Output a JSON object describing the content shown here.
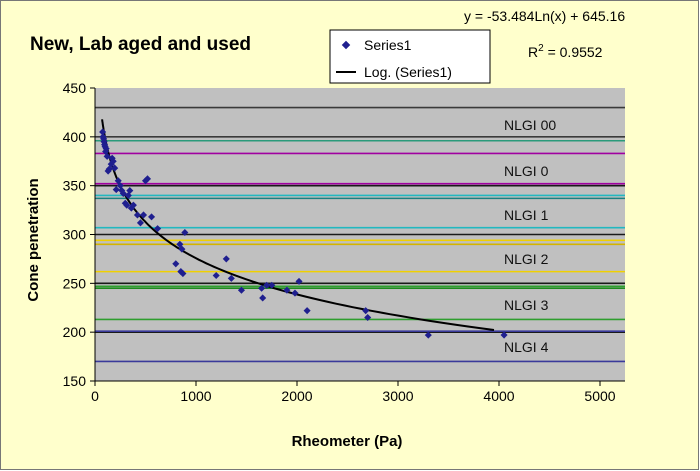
{
  "chart_data": {
    "type": "scatter",
    "title": "New, Lab aged and used",
    "xlabel": "Rheometer (Pa)",
    "ylabel": "Cone penetration",
    "xlim": [
      0,
      5000
    ],
    "ylim": [
      150,
      450
    ],
    "xticks": [
      0,
      1000,
      2000,
      3000,
      4000,
      5000
    ],
    "yticks": [
      150,
      200,
      250,
      300,
      350,
      400,
      450
    ],
    "plot_background": "#c0c0c0",
    "grid": false,
    "legend_position": "top-center",
    "legend": [
      "Series1",
      "Log. (Series1)"
    ],
    "trend_equation": "y = -53.484Ln(x) + 645.16",
    "r2_prefix": "R",
    "r2_exp": "2",
    "r2_value": " = 0.9552",
    "trendline": {
      "a": -53.484,
      "b": 645.16,
      "x_range": [
        70,
        3950
      ]
    },
    "series": [
      {
        "name": "Series1",
        "color": "#1f1f8f",
        "points": [
          [
            75,
            405
          ],
          [
            80,
            400
          ],
          [
            85,
            398
          ],
          [
            90,
            395
          ],
          [
            95,
            392
          ],
          [
            100,
            390
          ],
          [
            105,
            385
          ],
          [
            110,
            388
          ],
          [
            120,
            380
          ],
          [
            130,
            365
          ],
          [
            140,
            367
          ],
          [
            160,
            372
          ],
          [
            170,
            378
          ],
          [
            180,
            375
          ],
          [
            195,
            368
          ],
          [
            210,
            346
          ],
          [
            230,
            355
          ],
          [
            250,
            350
          ],
          [
            265,
            345
          ],
          [
            280,
            342
          ],
          [
            300,
            332
          ],
          [
            315,
            330
          ],
          [
            330,
            340
          ],
          [
            345,
            345
          ],
          [
            360,
            327
          ],
          [
            380,
            330
          ],
          [
            420,
            320
          ],
          [
            450,
            312
          ],
          [
            480,
            320
          ],
          [
            500,
            355
          ],
          [
            520,
            357
          ],
          [
            560,
            318
          ],
          [
            620,
            306
          ],
          [
            840,
            290
          ],
          [
            860,
            285
          ],
          [
            890,
            302
          ],
          [
            800,
            270
          ],
          [
            850,
            262
          ],
          [
            870,
            260
          ],
          [
            1200,
            258
          ],
          [
            1300,
            275
          ],
          [
            1350,
            255
          ],
          [
            1450,
            243
          ],
          [
            1650,
            245
          ],
          [
            1660,
            235
          ],
          [
            1700,
            248
          ],
          [
            1750,
            248
          ],
          [
            1900,
            243
          ],
          [
            1980,
            240
          ],
          [
            2020,
            252
          ],
          [
            2100,
            222
          ],
          [
            2680,
            222
          ],
          [
            2700,
            215
          ],
          [
            3300,
            197
          ],
          [
            4050,
            197
          ]
        ]
      }
    ],
    "nlgi_bands": [
      {
        "label": "NLGI 00",
        "lines": [
          400,
          430
        ],
        "color": "#3a3a3a",
        "label_y": 412
      },
      {
        "label": "NLGI 0",
        "lines": [
          352,
          383
        ],
        "color": "#a000a0",
        "label_y": 365
      },
      {
        "label": "NLGI 1",
        "lines": [
          307,
          340
        ],
        "color": "#22b8c0",
        "label_y": 320
      },
      {
        "label": "NLGI 2",
        "lines": [
          262,
          294
        ],
        "color": "#f0d000",
        "label_y": 275
      },
      {
        "label": "NLGI 3",
        "lines": [
          213,
          247
        ],
        "color": "#2f9e2f",
        "label_y": 228
      },
      {
        "label": "NLGI 4",
        "lines": [
          170,
          201
        ],
        "color": "#3a3a9a",
        "label_y": 185
      }
    ],
    "extra_lines": [
      {
        "value": 200,
        "color": "#1a1a1a"
      },
      {
        "value": 250,
        "color": "#1a1a1a"
      },
      {
        "value": 300,
        "color": "#1a1a1a"
      },
      {
        "value": 350,
        "color": "#1a1a1a"
      },
      {
        "value": 396,
        "color": "#2a9a7a"
      },
      {
        "value": 337,
        "color": "#1a8080"
      },
      {
        "value": 290,
        "color": "#d4b400"
      },
      {
        "value": 245,
        "color": "#1f8a1f"
      }
    ]
  }
}
